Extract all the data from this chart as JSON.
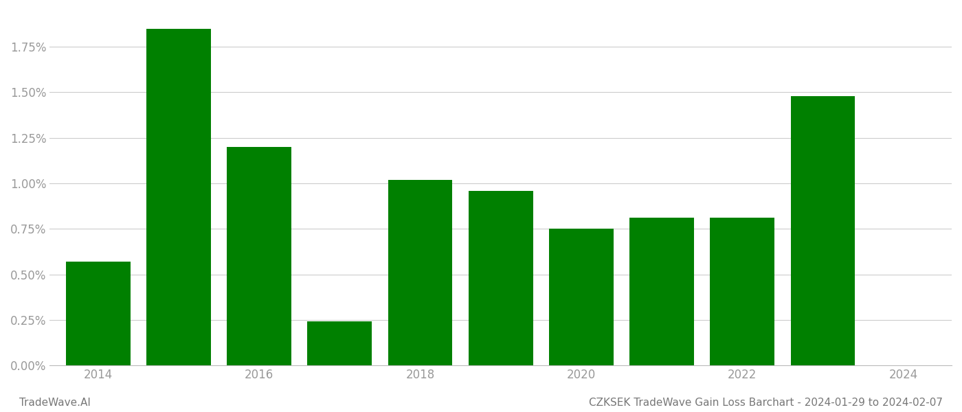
{
  "years": [
    2014,
    2015,
    2016,
    2017,
    2018,
    2019,
    2020,
    2021,
    2022,
    2023
  ],
  "values": [
    0.0057,
    0.0185,
    0.012,
    0.0024,
    0.0102,
    0.0096,
    0.0075,
    0.0081,
    0.0081,
    0.0148
  ],
  "bar_color": "#008000",
  "background_color": "#ffffff",
  "grid_color": "#cccccc",
  "tick_color": "#999999",
  "title": "CZKSEK TradeWave Gain Loss Barchart - 2024-01-29 to 2024-02-07",
  "watermark": "TradeWave.AI",
  "ylim": [
    0,
    0.0195
  ],
  "yticks": [
    0.0,
    0.0025,
    0.005,
    0.0075,
    0.01,
    0.0125,
    0.015,
    0.0175
  ],
  "xticks": [
    2014,
    2016,
    2018,
    2020,
    2022,
    2024
  ],
  "bar_width": 0.8,
  "title_fontsize": 11,
  "watermark_fontsize": 11,
  "tick_fontsize": 12
}
